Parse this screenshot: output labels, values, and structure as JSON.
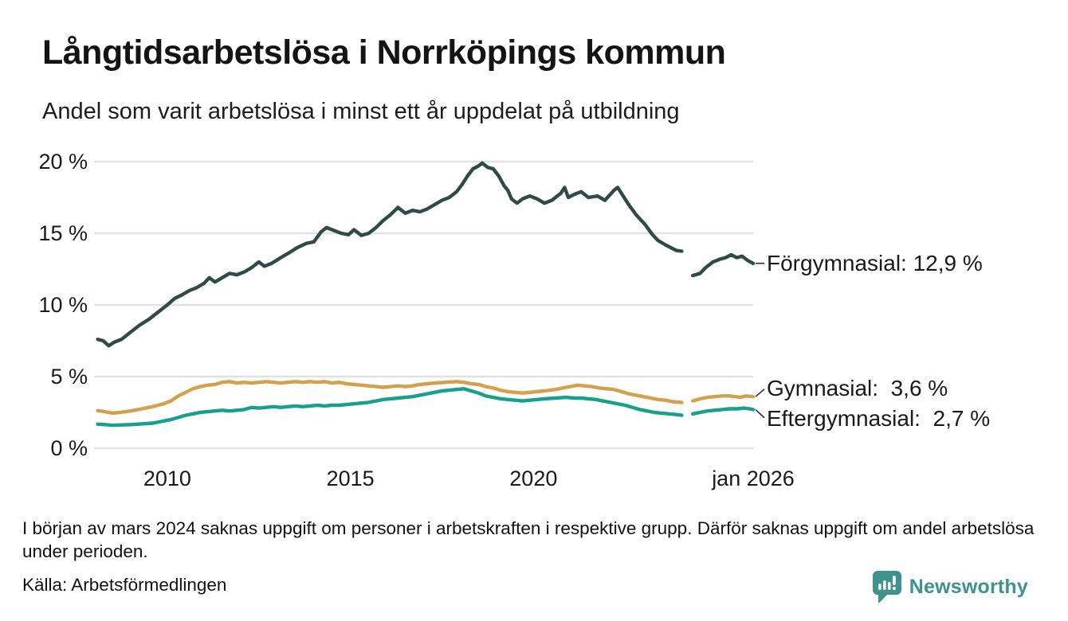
{
  "header": {
    "title": "Långtidsarbetslösa i Norrköpings kommun",
    "subtitle": "Andel som varit arbetslösa i minst ett år uppdelat på utbildning"
  },
  "chart_data": {
    "type": "line",
    "title": "Långtidsarbetslösa i Norrköpings kommun",
    "subtitle": "Andel som varit arbetslösa i minst ett år uppdelat på utbildning",
    "unit": "%",
    "grid": "horizontal",
    "legend_position": "right-end-labels",
    "x_axis": {
      "range": [
        2008,
        2026
      ],
      "ticks": [
        {
          "label": "2010",
          "year": 2010
        },
        {
          "label": "2015",
          "year": 2015
        },
        {
          "label": "2020",
          "year": 2020
        },
        {
          "label": "jan 2026",
          "year": 2026
        }
      ]
    },
    "y_axis": {
      "range": [
        0,
        21.5
      ],
      "ticks": [
        {
          "label": "20 %",
          "value": 20
        },
        {
          "label": "15 %",
          "value": 15
        },
        {
          "label": "10 %",
          "value": 10
        },
        {
          "label": "5 %",
          "value": 5
        },
        {
          "label": "0 %",
          "value": 0
        }
      ]
    },
    "data_gap": {
      "from": 2024.05,
      "to": 2024.35,
      "reason": "saknas uppgift mars 2024"
    },
    "series": [
      {
        "id": "forgymnasial",
        "name": "Förgymnasial",
        "label": "Förgymnasial: 12,9 %",
        "final_value": "12,9 %",
        "color": "#2e4b45",
        "points": [
          [
            2008.1,
            7.6
          ],
          [
            2008.25,
            7.5
          ],
          [
            2008.4,
            7.15
          ],
          [
            2008.55,
            7.4
          ],
          [
            2008.75,
            7.6
          ],
          [
            2009.0,
            8.1
          ],
          [
            2009.25,
            8.6
          ],
          [
            2009.5,
            9.0
          ],
          [
            2009.75,
            9.5
          ],
          [
            2010.0,
            10.0
          ],
          [
            2010.2,
            10.45
          ],
          [
            2010.4,
            10.7
          ],
          [
            2010.6,
            11.0
          ],
          [
            2010.8,
            11.2
          ],
          [
            2011.0,
            11.5
          ],
          [
            2011.15,
            11.9
          ],
          [
            2011.3,
            11.6
          ],
          [
            2011.5,
            11.9
          ],
          [
            2011.7,
            12.2
          ],
          [
            2011.9,
            12.1
          ],
          [
            2012.1,
            12.3
          ],
          [
            2012.3,
            12.6
          ],
          [
            2012.5,
            13.0
          ],
          [
            2012.65,
            12.7
          ],
          [
            2012.85,
            12.9
          ],
          [
            2013.1,
            13.3
          ],
          [
            2013.3,
            13.6
          ],
          [
            2013.55,
            14.0
          ],
          [
            2013.8,
            14.3
          ],
          [
            2014.0,
            14.4
          ],
          [
            2014.2,
            15.1
          ],
          [
            2014.35,
            15.4
          ],
          [
            2014.55,
            15.2
          ],
          [
            2014.75,
            15.0
          ],
          [
            2014.95,
            14.9
          ],
          [
            2015.1,
            15.25
          ],
          [
            2015.3,
            14.85
          ],
          [
            2015.5,
            15.0
          ],
          [
            2015.7,
            15.4
          ],
          [
            2015.9,
            15.9
          ],
          [
            2016.1,
            16.3
          ],
          [
            2016.3,
            16.8
          ],
          [
            2016.5,
            16.4
          ],
          [
            2016.7,
            16.6
          ],
          [
            2016.9,
            16.5
          ],
          [
            2017.1,
            16.7
          ],
          [
            2017.3,
            17.0
          ],
          [
            2017.5,
            17.3
          ],
          [
            2017.7,
            17.5
          ],
          [
            2017.9,
            17.9
          ],
          [
            2018.05,
            18.4
          ],
          [
            2018.2,
            19.0
          ],
          [
            2018.35,
            19.5
          ],
          [
            2018.5,
            19.7
          ],
          [
            2018.6,
            19.9
          ],
          [
            2018.75,
            19.6
          ],
          [
            2018.9,
            19.5
          ],
          [
            2019.05,
            19.0
          ],
          [
            2019.2,
            18.3
          ],
          [
            2019.3,
            18.0
          ],
          [
            2019.4,
            17.4
          ],
          [
            2019.55,
            17.1
          ],
          [
            2019.7,
            17.4
          ],
          [
            2019.9,
            17.6
          ],
          [
            2020.1,
            17.4
          ],
          [
            2020.3,
            17.1
          ],
          [
            2020.5,
            17.3
          ],
          [
            2020.75,
            17.8
          ],
          [
            2020.85,
            18.2
          ],
          [
            2020.95,
            17.5
          ],
          [
            2021.1,
            17.7
          ],
          [
            2021.3,
            17.9
          ],
          [
            2021.5,
            17.5
          ],
          [
            2021.75,
            17.6
          ],
          [
            2021.95,
            17.3
          ],
          [
            2022.2,
            18.0
          ],
          [
            2022.3,
            18.2
          ],
          [
            2022.45,
            17.6
          ],
          [
            2022.6,
            17.0
          ],
          [
            2022.8,
            16.3
          ],
          [
            2023.05,
            15.6
          ],
          [
            2023.25,
            14.9
          ],
          [
            2023.4,
            14.5
          ],
          [
            2023.6,
            14.2
          ],
          [
            2023.75,
            14.0
          ],
          [
            2023.9,
            13.8
          ],
          [
            2024.05,
            13.75
          ],
          null,
          [
            2024.35,
            12.05
          ],
          [
            2024.55,
            12.2
          ],
          [
            2024.7,
            12.6
          ],
          [
            2024.9,
            13.0
          ],
          [
            2025.1,
            13.2
          ],
          [
            2025.25,
            13.3
          ],
          [
            2025.4,
            13.5
          ],
          [
            2025.55,
            13.3
          ],
          [
            2025.7,
            13.4
          ],
          [
            2025.85,
            13.1
          ],
          [
            2026.0,
            12.9
          ]
        ]
      },
      {
        "id": "gymnasial",
        "name": "Gymnasial",
        "label": "Gymnasial:  3,6 %",
        "final_value": "3,6 %",
        "color": "#d2a14b",
        "points": [
          [
            2008.1,
            2.62
          ],
          [
            2008.3,
            2.55
          ],
          [
            2008.5,
            2.45
          ],
          [
            2008.7,
            2.5
          ],
          [
            2009.0,
            2.6
          ],
          [
            2009.3,
            2.75
          ],
          [
            2009.6,
            2.9
          ],
          [
            2009.9,
            3.1
          ],
          [
            2010.1,
            3.3
          ],
          [
            2010.3,
            3.65
          ],
          [
            2010.5,
            3.9
          ],
          [
            2010.7,
            4.15
          ],
          [
            2010.9,
            4.3
          ],
          [
            2011.1,
            4.4
          ],
          [
            2011.3,
            4.45
          ],
          [
            2011.5,
            4.6
          ],
          [
            2011.7,
            4.65
          ],
          [
            2011.9,
            4.55
          ],
          [
            2012.1,
            4.6
          ],
          [
            2012.3,
            4.55
          ],
          [
            2012.5,
            4.6
          ],
          [
            2012.7,
            4.65
          ],
          [
            2012.9,
            4.6
          ],
          [
            2013.1,
            4.55
          ],
          [
            2013.3,
            4.6
          ],
          [
            2013.5,
            4.65
          ],
          [
            2013.7,
            4.6
          ],
          [
            2013.9,
            4.65
          ],
          [
            2014.1,
            4.6
          ],
          [
            2014.3,
            4.65
          ],
          [
            2014.5,
            4.55
          ],
          [
            2014.7,
            4.6
          ],
          [
            2014.9,
            4.5
          ],
          [
            2015.1,
            4.45
          ],
          [
            2015.3,
            4.4
          ],
          [
            2015.5,
            4.35
          ],
          [
            2015.7,
            4.3
          ],
          [
            2015.9,
            4.25
          ],
          [
            2016.1,
            4.3
          ],
          [
            2016.3,
            4.35
          ],
          [
            2016.5,
            4.3
          ],
          [
            2016.7,
            4.35
          ],
          [
            2016.9,
            4.45
          ],
          [
            2017.1,
            4.5
          ],
          [
            2017.3,
            4.55
          ],
          [
            2017.6,
            4.6
          ],
          [
            2017.9,
            4.65
          ],
          [
            2018.1,
            4.6
          ],
          [
            2018.3,
            4.5
          ],
          [
            2018.5,
            4.45
          ],
          [
            2018.7,
            4.3
          ],
          [
            2018.9,
            4.2
          ],
          [
            2019.1,
            4.05
          ],
          [
            2019.3,
            3.95
          ],
          [
            2019.5,
            3.9
          ],
          [
            2019.7,
            3.85
          ],
          [
            2019.9,
            3.9
          ],
          [
            2020.1,
            3.95
          ],
          [
            2020.3,
            4.0
          ],
          [
            2020.6,
            4.1
          ],
          [
            2020.8,
            4.2
          ],
          [
            2021.0,
            4.3
          ],
          [
            2021.2,
            4.4
          ],
          [
            2021.4,
            4.35
          ],
          [
            2021.6,
            4.3
          ],
          [
            2021.8,
            4.2
          ],
          [
            2022.0,
            4.15
          ],
          [
            2022.2,
            4.1
          ],
          [
            2022.4,
            3.95
          ],
          [
            2022.6,
            3.8
          ],
          [
            2022.8,
            3.7
          ],
          [
            2023.0,
            3.6
          ],
          [
            2023.2,
            3.5
          ],
          [
            2023.4,
            3.4
          ],
          [
            2023.6,
            3.35
          ],
          [
            2023.8,
            3.25
          ],
          [
            2024.05,
            3.2
          ],
          null,
          [
            2024.35,
            3.3
          ],
          [
            2024.55,
            3.45
          ],
          [
            2024.75,
            3.55
          ],
          [
            2024.95,
            3.6
          ],
          [
            2025.15,
            3.65
          ],
          [
            2025.35,
            3.65
          ],
          [
            2025.5,
            3.6
          ],
          [
            2025.65,
            3.55
          ],
          [
            2025.8,
            3.65
          ],
          [
            2026.0,
            3.6
          ]
        ]
      },
      {
        "id": "eftergymnasial",
        "name": "Eftergymnasial",
        "label": "Eftergymnasial:  2,7 %",
        "final_value": "2,7 %",
        "color": "#17a08d",
        "points": [
          [
            2008.1,
            1.68
          ],
          [
            2008.3,
            1.65
          ],
          [
            2008.5,
            1.6
          ],
          [
            2008.7,
            1.62
          ],
          [
            2009.0,
            1.65
          ],
          [
            2009.3,
            1.7
          ],
          [
            2009.6,
            1.75
          ],
          [
            2009.9,
            1.9
          ],
          [
            2010.1,
            2.0
          ],
          [
            2010.3,
            2.15
          ],
          [
            2010.5,
            2.3
          ],
          [
            2010.7,
            2.4
          ],
          [
            2010.9,
            2.5
          ],
          [
            2011.1,
            2.55
          ],
          [
            2011.3,
            2.6
          ],
          [
            2011.5,
            2.65
          ],
          [
            2011.7,
            2.6
          ],
          [
            2011.9,
            2.65
          ],
          [
            2012.1,
            2.7
          ],
          [
            2012.3,
            2.85
          ],
          [
            2012.5,
            2.8
          ],
          [
            2012.7,
            2.85
          ],
          [
            2012.9,
            2.9
          ],
          [
            2013.1,
            2.85
          ],
          [
            2013.3,
            2.9
          ],
          [
            2013.5,
            2.95
          ],
          [
            2013.7,
            2.9
          ],
          [
            2013.9,
            2.95
          ],
          [
            2014.1,
            3.0
          ],
          [
            2014.3,
            2.95
          ],
          [
            2014.5,
            3.0
          ],
          [
            2014.7,
            3.0
          ],
          [
            2014.9,
            3.05
          ],
          [
            2015.1,
            3.1
          ],
          [
            2015.3,
            3.15
          ],
          [
            2015.5,
            3.2
          ],
          [
            2015.7,
            3.3
          ],
          [
            2015.9,
            3.4
          ],
          [
            2016.1,
            3.45
          ],
          [
            2016.3,
            3.5
          ],
          [
            2016.5,
            3.55
          ],
          [
            2016.7,
            3.6
          ],
          [
            2016.9,
            3.7
          ],
          [
            2017.1,
            3.8
          ],
          [
            2017.3,
            3.9
          ],
          [
            2017.5,
            4.0
          ],
          [
            2017.7,
            4.05
          ],
          [
            2017.9,
            4.1
          ],
          [
            2018.1,
            4.15
          ],
          [
            2018.3,
            4.0
          ],
          [
            2018.5,
            3.85
          ],
          [
            2018.7,
            3.65
          ],
          [
            2018.9,
            3.55
          ],
          [
            2019.1,
            3.45
          ],
          [
            2019.3,
            3.4
          ],
          [
            2019.5,
            3.35
          ],
          [
            2019.7,
            3.3
          ],
          [
            2019.9,
            3.35
          ],
          [
            2020.1,
            3.4
          ],
          [
            2020.3,
            3.45
          ],
          [
            2020.6,
            3.5
          ],
          [
            2020.9,
            3.55
          ],
          [
            2021.1,
            3.5
          ],
          [
            2021.3,
            3.5
          ],
          [
            2021.5,
            3.45
          ],
          [
            2021.7,
            3.4
          ],
          [
            2021.9,
            3.3
          ],
          [
            2022.1,
            3.2
          ],
          [
            2022.3,
            3.1
          ],
          [
            2022.5,
            3.0
          ],
          [
            2022.7,
            2.85
          ],
          [
            2022.9,
            2.7
          ],
          [
            2023.1,
            2.6
          ],
          [
            2023.3,
            2.5
          ],
          [
            2023.5,
            2.45
          ],
          [
            2023.7,
            2.4
          ],
          [
            2023.9,
            2.35
          ],
          [
            2024.05,
            2.3
          ],
          null,
          [
            2024.35,
            2.4
          ],
          [
            2024.55,
            2.5
          ],
          [
            2024.75,
            2.6
          ],
          [
            2024.95,
            2.65
          ],
          [
            2025.15,
            2.7
          ],
          [
            2025.35,
            2.75
          ],
          [
            2025.55,
            2.75
          ],
          [
            2025.75,
            2.8
          ],
          [
            2025.9,
            2.75
          ],
          [
            2026.0,
            2.7
          ]
        ]
      }
    ]
  },
  "footnote": {
    "text": "I början av mars 2024 saknas uppgift om personer i arbetskraften i respektive grupp. Därför saknas uppgift om andel arbetslösa under perioden."
  },
  "source": {
    "text": "Källa: Arbetsförmedlingen"
  },
  "branding": {
    "logo_text": "Newsworthy",
    "color": "#3e938c"
  },
  "colors": {
    "gridline": "#e1e1e1",
    "text": "#1a1a1a"
  }
}
